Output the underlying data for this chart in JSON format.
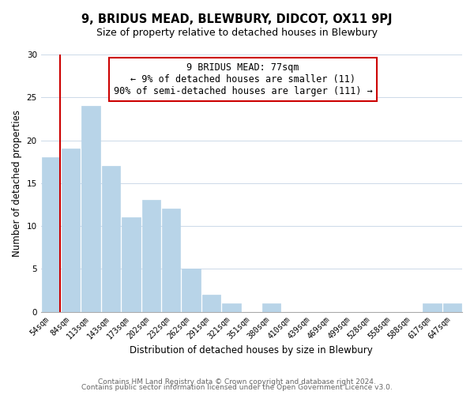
{
  "title": "9, BRIDUS MEAD, BLEWBURY, DIDCOT, OX11 9PJ",
  "subtitle": "Size of property relative to detached houses in Blewbury",
  "xlabel": "Distribution of detached houses by size in Blewbury",
  "ylabel": "Number of detached properties",
  "bar_labels": [
    "54sqm",
    "84sqm",
    "113sqm",
    "143sqm",
    "173sqm",
    "202sqm",
    "232sqm",
    "262sqm",
    "291sqm",
    "321sqm",
    "351sqm",
    "380sqm",
    "410sqm",
    "439sqm",
    "469sqm",
    "499sqm",
    "528sqm",
    "558sqm",
    "588sqm",
    "617sqm",
    "647sqm"
  ],
  "bar_values": [
    18,
    19,
    24,
    17,
    11,
    13,
    12,
    5,
    2,
    1,
    0,
    1,
    0,
    0,
    0,
    0,
    0,
    0,
    0,
    1,
    1
  ],
  "bar_color": "#b8d4e8",
  "highlight_color": "#cc0000",
  "ylim": [
    0,
    30
  ],
  "yticks": [
    0,
    5,
    10,
    15,
    20,
    25,
    30
  ],
  "annotation_box_text": "9 BRIDUS MEAD: 77sqm\n← 9% of detached houses are smaller (11)\n90% of semi-detached houses are larger (111) →",
  "footer_line1": "Contains HM Land Registry data © Crown copyright and database right 2024.",
  "footer_line2": "Contains public sector information licensed under the Open Government Licence v3.0.",
  "bg_color": "#ffffff",
  "grid_color": "#ccd9e8",
  "title_fontsize": 10.5,
  "subtitle_fontsize": 9,
  "axis_label_fontsize": 8.5,
  "tick_fontsize": 7,
  "footer_fontsize": 6.5,
  "annotation_fontsize": 8.5
}
